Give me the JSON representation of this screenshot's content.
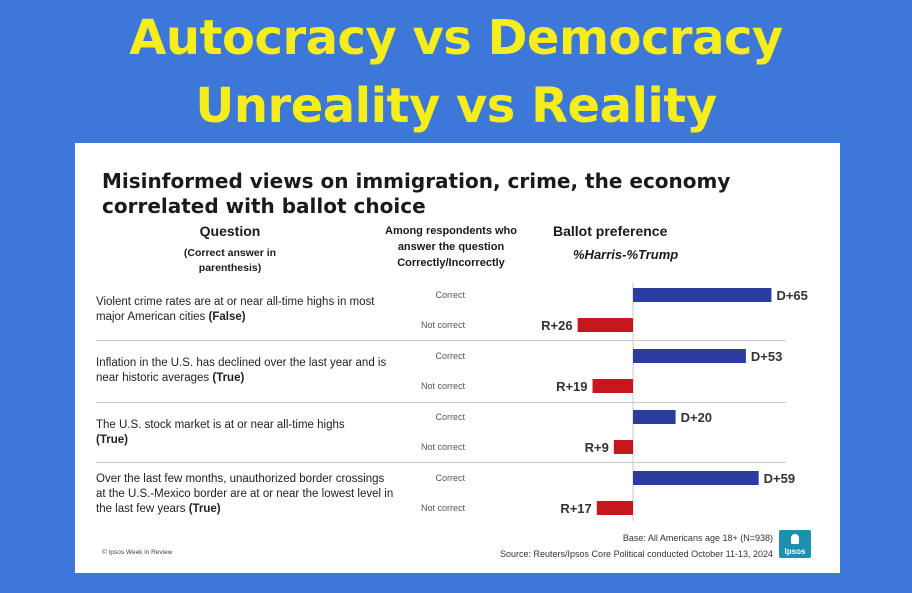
{
  "banner": {
    "line1": "Autocracy vs Democracy",
    "line2": "Unreality vs Reality"
  },
  "card": {
    "title": "Misinformed views on immigration, crime, the economy correlated with ballot choice",
    "col_question": "Question",
    "col_question_sub": "(Correct answer in parenthesis)",
    "col_middle": "Among respondents who answer the question Correctly/Incorrectly",
    "col_ballot": "Ballot preference",
    "col_ballot_sub": "%Harris-%Trump",
    "footer_left": "© Ipsos Week in Review",
    "base": "Base: All Americans age 18+ (N=938)",
    "source": "Source: Reuters/Ipsos Core Political conducted October 11-13, 2024",
    "logo": "Ipsos"
  },
  "questions": [
    {
      "text": "Violent crime rates are at or near all-time highs in most major American cities",
      "answer": "(False)"
    },
    {
      "text": "Inflation in the U.S. has declined over the last year and is near historic averages",
      "answer": "(True)"
    },
    {
      "text": "The U.S. stock market is at or near all-time highs",
      "answer": "(True)"
    },
    {
      "text": "Over the last few months, unauthorized border crossings at the U.S.-Mexico border are at or near the lowest level in the last few years",
      "answer": "(True)"
    }
  ],
  "row_labels": {
    "correct": "Correct",
    "not_correct": "Not correct"
  },
  "colors": {
    "dem": "#2c3b9e",
    "rep": "#c8161e",
    "banner_text": "#f5ee1a",
    "background": "#3d78d8"
  },
  "chart_data": {
    "type": "bar",
    "orientation": "horizontal",
    "categories": [
      "Violent crime - Correct",
      "Violent crime - Not correct",
      "Inflation - Correct",
      "Inflation - Not correct",
      "Stock market - Correct",
      "Stock market - Not correct",
      "Border crossings - Correct",
      "Border crossings - Not correct"
    ],
    "values": [
      65,
      -26,
      53,
      -19,
      20,
      -9,
      59,
      -17
    ],
    "labels": [
      "D+65",
      "R+26",
      "D+53",
      "R+19",
      "D+20",
      "R+9",
      "D+59",
      "R+17"
    ],
    "title": "Misinformed views on immigration, crime, the economy correlated with ballot choice",
    "xlabel": "%Harris-%Trump",
    "ylabel": "",
    "xlim": [
      -30,
      70
    ]
  }
}
